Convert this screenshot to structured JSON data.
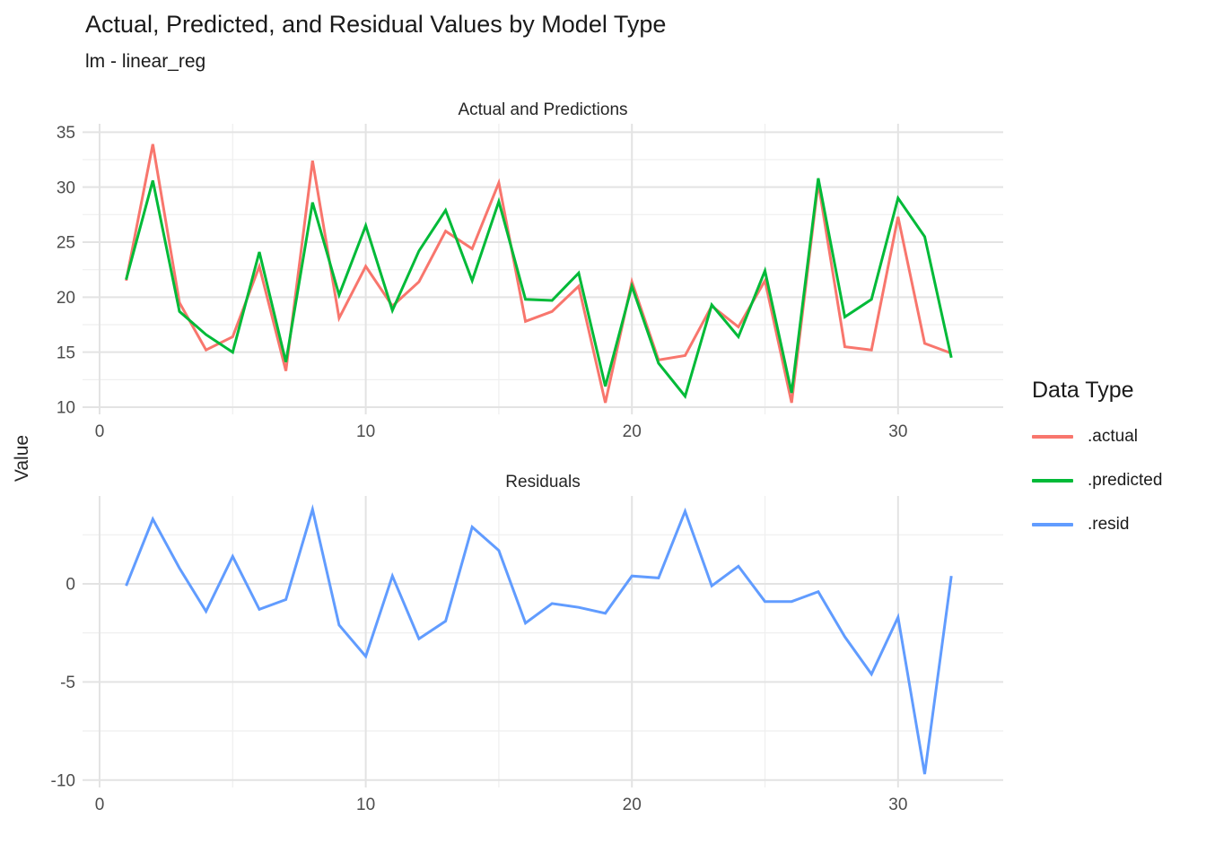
{
  "title": "Actual, Predicted, and Residual Values by Model Type",
  "subtitle": "lm - linear_reg",
  "y_axis_label": "Value",
  "legend": {
    "title": "Data Type",
    "items": [
      {
        "label": ".actual",
        "color": "#F8766D"
      },
      {
        "label": ".predicted",
        "color": "#00BA38"
      },
      {
        "label": ".resid",
        "color": "#619CFF"
      }
    ]
  },
  "style": {
    "grid_major_color": "#E3E3E3",
    "grid_minor_color": "#EFEFEF",
    "tick_label_color": "#4D4D4D",
    "line_width": 3
  },
  "chart_data": [
    {
      "type": "line",
      "title": "Actual and Predictions",
      "x": [
        1,
        2,
        3,
        4,
        5,
        6,
        7,
        8,
        9,
        10,
        11,
        12,
        13,
        14,
        15,
        16,
        17,
        18,
        19,
        20,
        21,
        22,
        23,
        24,
        25,
        26,
        27,
        28,
        29,
        30,
        31,
        32
      ],
      "series": [
        {
          "name": ".actual",
          "color": "#F8766D",
          "values": [
            21.5,
            33.9,
            19.5,
            15.2,
            16.4,
            22.8,
            13.3,
            32.4,
            18.1,
            22.8,
            19.2,
            21.4,
            26.0,
            24.4,
            30.4,
            17.8,
            18.7,
            21.0,
            10.4,
            21.4,
            14.3,
            14.7,
            19.2,
            17.3,
            21.5,
            10.4,
            30.4,
            15.5,
            15.2,
            27.3,
            15.8,
            14.9
          ]
        },
        {
          "name": ".predicted",
          "color": "#00BA38",
          "values": [
            21.6,
            30.6,
            18.7,
            16.6,
            15.0,
            24.1,
            14.1,
            28.6,
            20.2,
            26.5,
            18.8,
            24.2,
            27.9,
            21.5,
            28.7,
            19.8,
            19.7,
            22.2,
            11.9,
            21.0,
            14.0,
            11.0,
            19.3,
            16.4,
            22.4,
            11.3,
            30.8,
            18.2,
            19.8,
            29.0,
            25.5,
            14.5
          ]
        }
      ],
      "xlim": [
        -0.64,
        33.95
      ],
      "ylim": [
        9.35,
        35.76
      ],
      "x_ticks": [
        0,
        10,
        20,
        30
      ],
      "y_ticks": [
        35,
        30,
        25,
        20,
        15,
        10
      ],
      "x_minor": [
        5,
        15,
        25
      ],
      "y_minor": [
        12.5,
        17.5,
        22.5,
        27.5,
        32.5
      ],
      "grid": true,
      "legend_position": "right"
    },
    {
      "type": "line",
      "title": "Residuals",
      "x": [
        1,
        2,
        3,
        4,
        5,
        6,
        7,
        8,
        9,
        10,
        11,
        12,
        13,
        14,
        15,
        16,
        17,
        18,
        19,
        20,
        21,
        22,
        23,
        24,
        25,
        26,
        27,
        28,
        29,
        30,
        31,
        32
      ],
      "series": [
        {
          "name": ".resid",
          "color": "#619CFF",
          "values": [
            -0.1,
            3.3,
            0.8,
            -1.4,
            1.4,
            -1.3,
            -0.8,
            3.8,
            -2.1,
            -3.7,
            0.4,
            -2.8,
            -1.9,
            2.9,
            1.7,
            -2.0,
            -1.0,
            -1.2,
            -1.5,
            0.4,
            0.3,
            3.7,
            -0.1,
            0.9,
            -0.9,
            -0.9,
            -0.4,
            -2.7,
            -4.6,
            -1.7,
            -9.7,
            0.4
          ]
        }
      ],
      "xlim": [
        -0.64,
        33.95
      ],
      "ylim": [
        -10.38,
        4.48
      ],
      "x_ticks": [
        0,
        10,
        20,
        30
      ],
      "y_ticks": [
        0,
        -5,
        -10
      ],
      "x_minor": [
        5,
        15,
        25
      ],
      "y_minor": [
        2.5,
        -2.5,
        -7.5
      ],
      "grid": true,
      "legend_position": "right"
    }
  ]
}
